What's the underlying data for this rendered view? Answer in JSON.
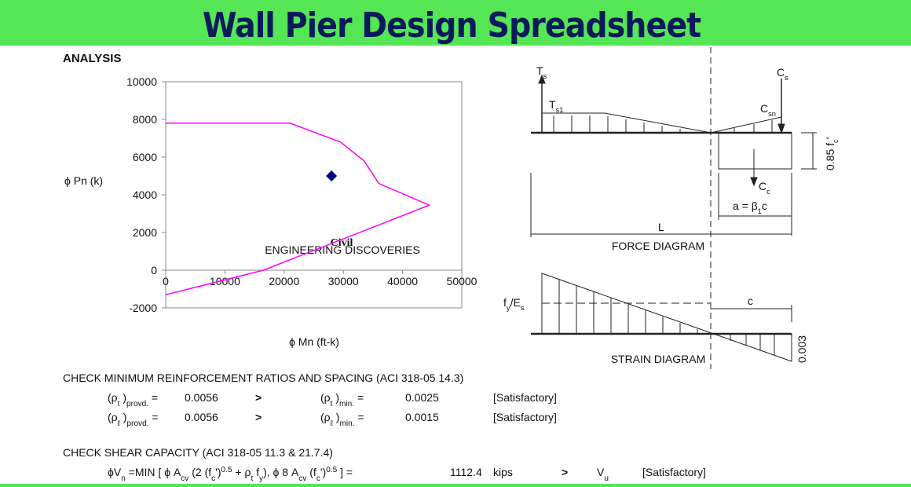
{
  "header": {
    "title": "Wall Pier Design Spreadsheet"
  },
  "section": "ANALYSIS",
  "chart_data": {
    "type": "line",
    "ylabel": "ϕ Pn (k)",
    "xlabel": "ϕ Mn (ft-k)",
    "xlim": [
      0,
      50000
    ],
    "ylim": [
      -2000,
      10000
    ],
    "xticks": [
      0,
      10000,
      20000,
      30000,
      40000,
      50000
    ],
    "yticks": [
      -2000,
      0,
      2000,
      4000,
      6000,
      8000,
      10000
    ],
    "series": [
      {
        "type": "line",
        "color": "#ff00ff",
        "x": [
          0,
          21000,
          29500,
          33500,
          36000,
          44500,
          16500,
          0
        ],
        "values": [
          7800,
          7800,
          6800,
          5800,
          4600,
          3450,
          0,
          -1300
        ]
      },
      {
        "type": "scatter",
        "color": "#000080",
        "x": [
          28000
        ],
        "values": [
          5000
        ]
      }
    ]
  },
  "logo": {
    "text": "Civil",
    "subtext": "ENGINEERING DISCOVERIES"
  },
  "force_diagram": {
    "caption": "FORCE DIAGRAM",
    "labels": [
      [
        {
          "text": "T"
        },
        {
          "sub": "s"
        }
      ],
      [
        {
          "text": "T"
        },
        {
          "sub": "s1"
        }
      ],
      [
        {
          "text": "C"
        },
        {
          "sub": "s"
        }
      ],
      [
        {
          "text": "C"
        },
        {
          "sub": "sn"
        }
      ],
      [
        {
          "text": "C"
        },
        {
          "sub": "c"
        }
      ],
      [
        {
          "text": "a = β"
        },
        {
          "sub": "1"
        },
        {
          "text": "c"
        }
      ],
      [
        {
          "text": "L"
        }
      ],
      [
        {
          "text": "0.85 f"
        },
        {
          "sub": "c"
        },
        {
          "text": "'"
        }
      ]
    ]
  },
  "strain_diagram": {
    "caption": "STRAIN DIAGRAM",
    "labels": [
      [
        {
          "text": "f"
        },
        {
          "sub": "y"
        },
        {
          "text": "/E"
        },
        {
          "sub": "s"
        }
      ],
      [
        {
          "text": "c"
        }
      ],
      [
        {
          "text": "0.003"
        }
      ]
    ]
  },
  "reinforcement_check": {
    "title": "CHECK MINIMUM REINFORCEMENT RATIOS AND SPACING (ACI 318-05 14.3)",
    "rows": [
      {
        "lhs": [
          {
            "text": "(ρ"
          },
          {
            "sub": "t"
          },
          {
            "text": " )"
          },
          {
            "sub": "provd."
          },
          {
            "text": "  ="
          }
        ],
        "value": 0.0056,
        "op": ">",
        "rhs": [
          {
            "text": "(ρ"
          },
          {
            "sub": "t"
          },
          {
            "text": " )"
          },
          {
            "sub": "min."
          },
          {
            "text": "  ="
          }
        ],
        "limit": 0.0025,
        "status": "[Satisfactory]"
      },
      {
        "lhs": [
          {
            "text": "(ρ"
          },
          {
            "sub": "ℓ"
          },
          {
            "text": " )"
          },
          {
            "sub": "provd."
          },
          {
            "text": "  ="
          }
        ],
        "value": 0.0056,
        "op": ">",
        "rhs": [
          {
            "text": "(ρ"
          },
          {
            "sub": "ℓ"
          },
          {
            "text": " )"
          },
          {
            "sub": "min."
          },
          {
            "text": "  ="
          }
        ],
        "limit": 0.0015,
        "status": "[Satisfactory]"
      }
    ]
  },
  "shear_check": {
    "title": "CHECK SHEAR CAPACITY (ACI 318-05 11.3 & 21.7.4)",
    "formula": [
      {
        "text": "ϕV"
      },
      {
        "sub": "n"
      },
      {
        "text": " =MIN [ ϕ A"
      },
      {
        "sub": "cv"
      },
      {
        "text": " (2 (f"
      },
      {
        "sub": "c"
      },
      {
        "text": "')"
      },
      {
        "sup": "0.5"
      },
      {
        "text": " + ρ"
      },
      {
        "sub": "t"
      },
      {
        "text": " f"
      },
      {
        "sub": "y"
      },
      {
        "text": "), ϕ 8 A"
      },
      {
        "sub": "cv"
      },
      {
        "text": " (f"
      },
      {
        "sub": "c"
      },
      {
        "text": "')"
      },
      {
        "sup": "0.5"
      },
      {
        "text": " ]  ="
      }
    ],
    "value": 1112.4,
    "unit": "kips",
    "op": ">",
    "demand": [
      {
        "text": "V"
      },
      {
        "sub": "u"
      }
    ],
    "status": "[Satisfactory]"
  }
}
